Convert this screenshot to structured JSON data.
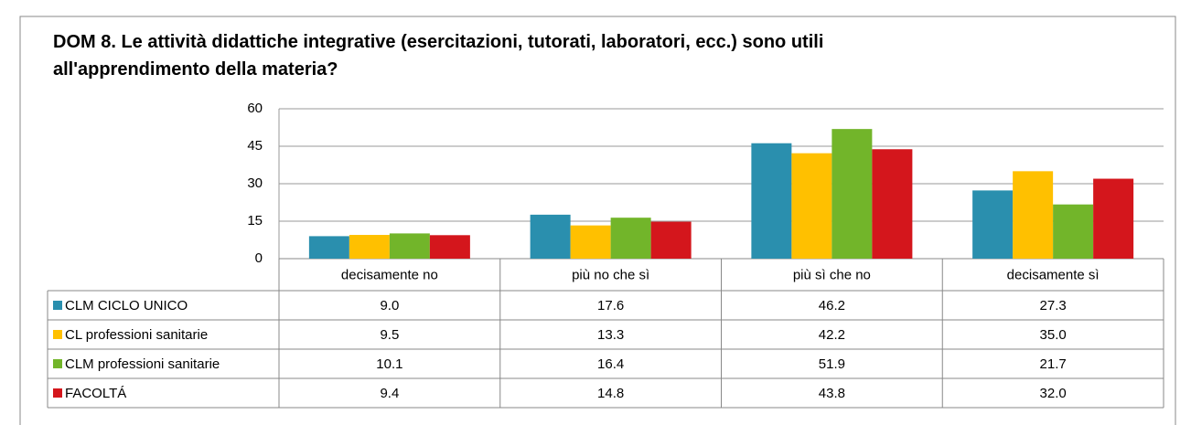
{
  "chart_data": {
    "type": "bar",
    "title": [
      "DOM 8. Le attività didattiche integrative (esercitazioni, tutorati, laboratori, ecc.) sono utili",
      "all'apprendimento della materia?"
    ],
    "categories": [
      "decisamente no",
      "più no che sì",
      "più sì che no",
      "decisamente sì"
    ],
    "series": [
      {
        "name": "CLM CICLO UNICO",
        "color": "#2a8fae",
        "values": [
          9.0,
          17.6,
          46.2,
          27.3
        ],
        "value_labels": [
          "9.0",
          "17.6",
          "46.2",
          "27.3"
        ]
      },
      {
        "name": "CL professioni sanitarie",
        "color": "#ffc000",
        "values": [
          9.5,
          13.3,
          42.2,
          35.0
        ],
        "value_labels": [
          "9.5",
          "13.3",
          "42.2",
          "35.0"
        ]
      },
      {
        "name": "CLM professioni sanitarie",
        "color": "#72b52a",
        "values": [
          10.1,
          16.4,
          51.9,
          21.7
        ],
        "value_labels": [
          "10.1",
          "16.4",
          "51.9",
          "21.7"
        ]
      },
      {
        "name": "FACOLTÁ",
        "color": "#d4161c",
        "values": [
          9.4,
          14.8,
          43.8,
          32.0
        ],
        "value_labels": [
          "9.4",
          "14.8",
          "43.8",
          "32.0"
        ]
      }
    ],
    "ylim": [
      0,
      60
    ],
    "yticks": [
      0,
      15,
      30,
      45,
      60
    ],
    "grid": true
  }
}
